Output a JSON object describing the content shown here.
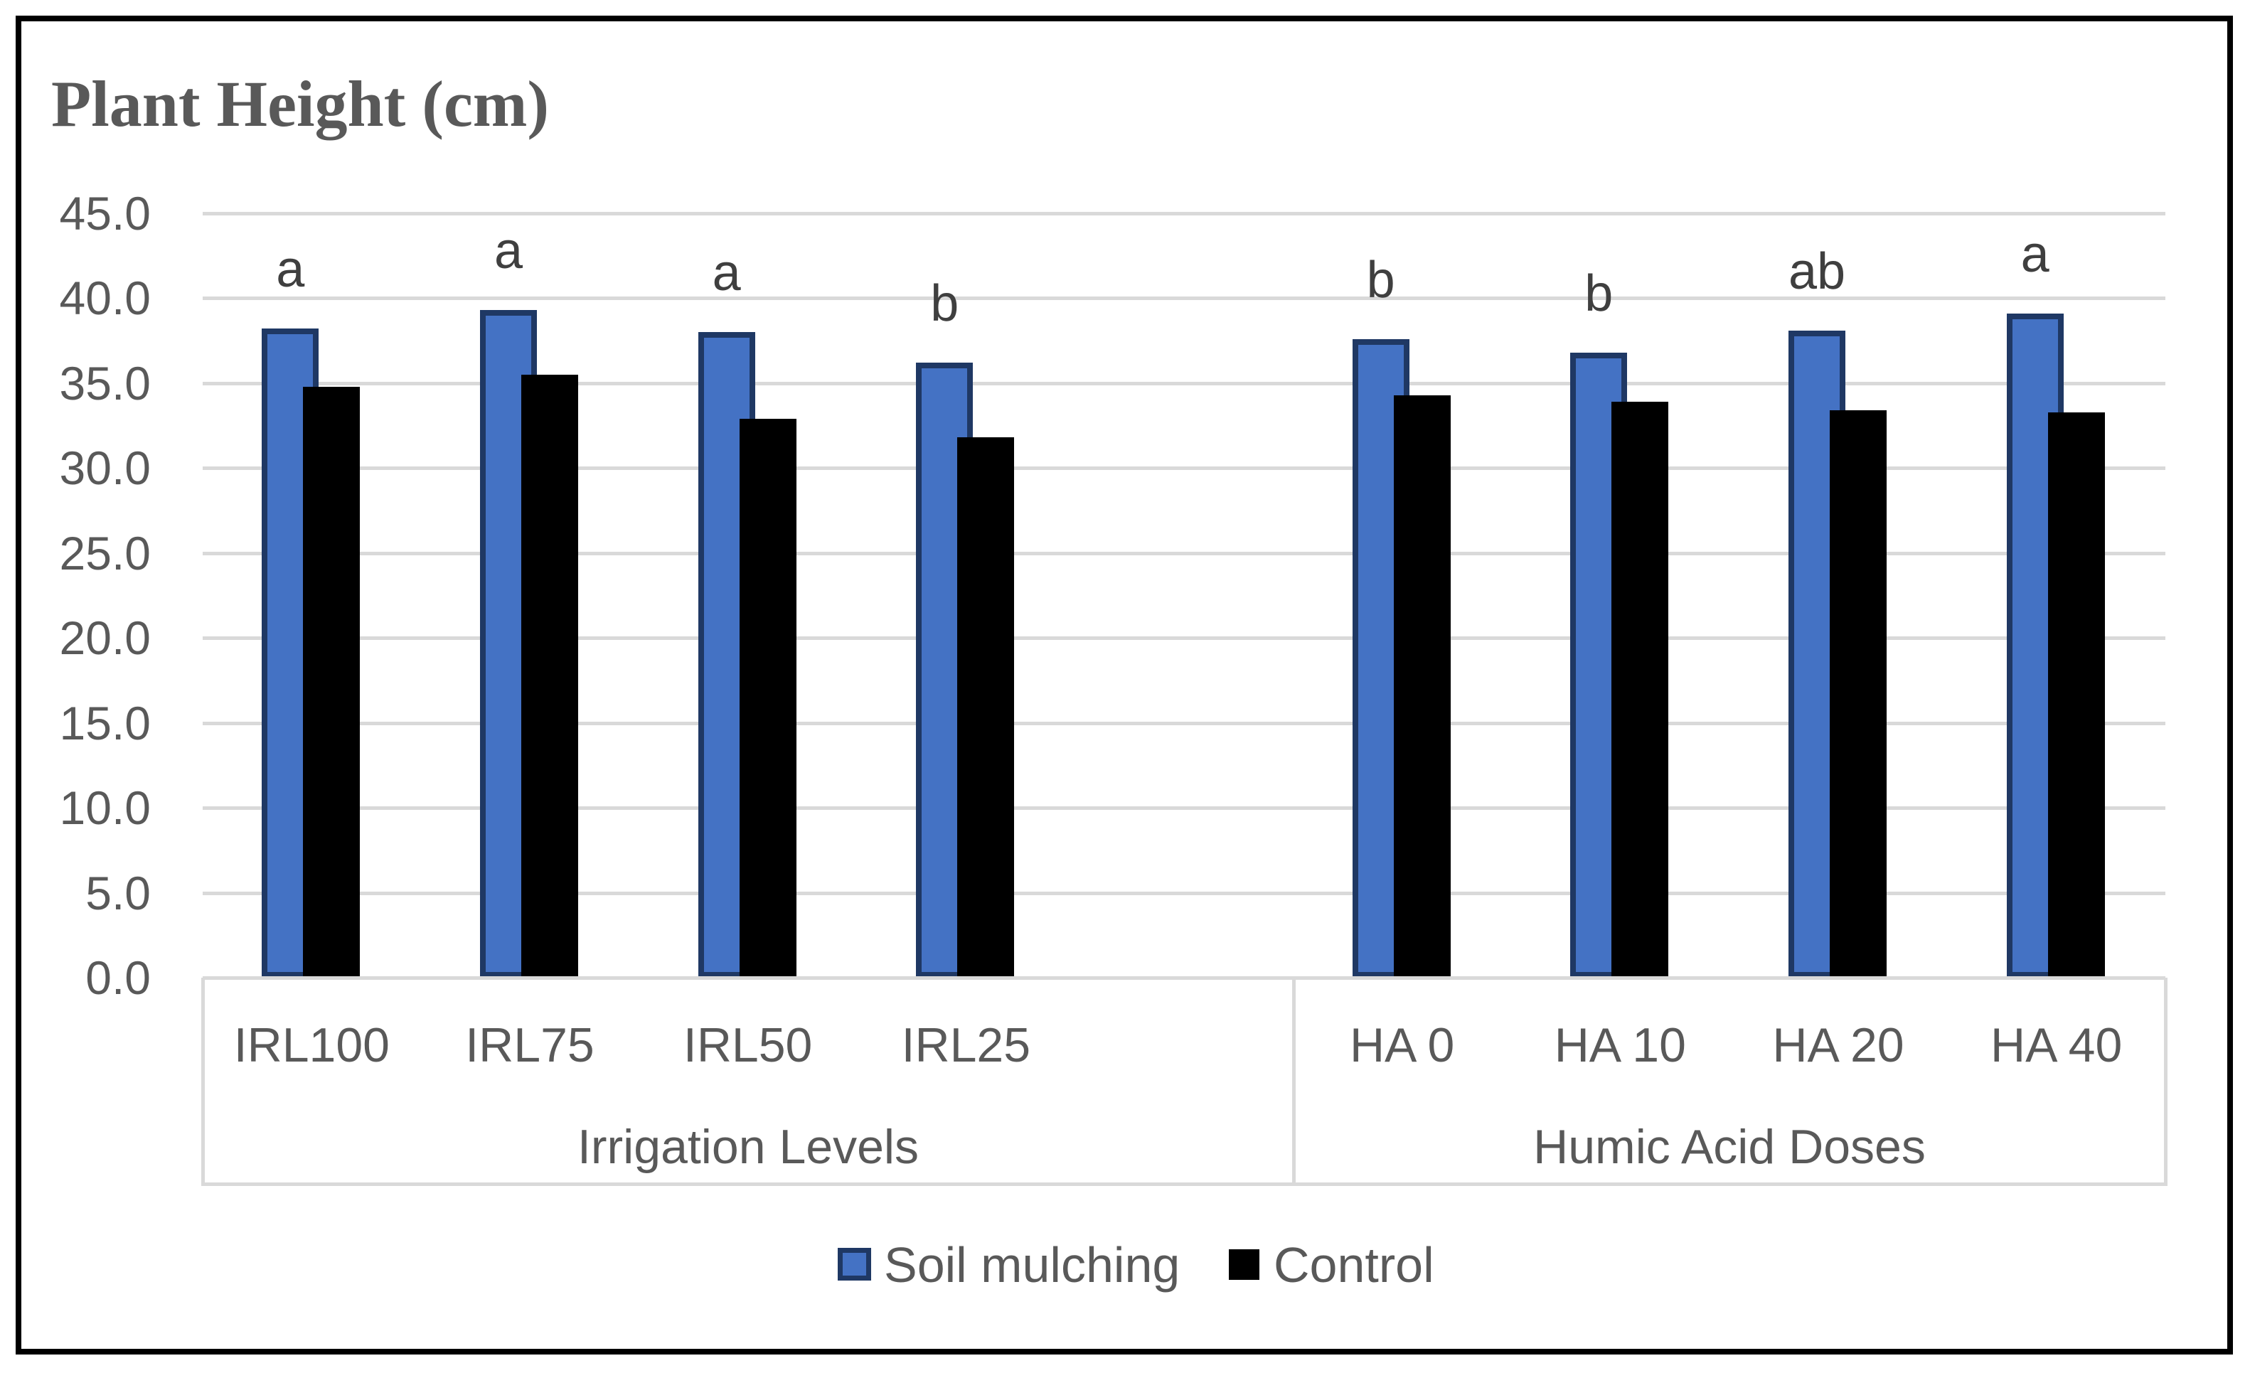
{
  "title": "Plant Height (cm)",
  "colors": {
    "text": "#595959",
    "letter_text": "#3f3f3f",
    "gridline": "#d9d9d9",
    "series_blue_fill": "#4472c4",
    "series_blue_border": "#1f3864",
    "series_black": "#000000",
    "frame_border": "#000000",
    "background": "#ffffff"
  },
  "legend": {
    "position": "bottom",
    "items": [
      {
        "label": "Soil mulching",
        "swatch": "blue-bordered-square"
      },
      {
        "label": "Control",
        "swatch": "black-square"
      }
    ]
  },
  "chart_data": {
    "type": "bar",
    "title": "Plant Height (cm)",
    "ylabel": "",
    "xlabel": "",
    "grid": true,
    "legend_position": "bottom",
    "y_axis": {
      "min": 0,
      "max": 45,
      "step": 5,
      "tick_labels": [
        "45.0",
        "40.0",
        "35.0",
        "30.0",
        "25.0",
        "20.0",
        "15.0",
        "10.0",
        "5.0",
        "0.0"
      ]
    },
    "groups": [
      {
        "label": "Irrigation Levels",
        "categories": [
          "IRL100",
          "IRL75",
          "IRL50",
          "IRL25"
        ]
      },
      {
        "label": "Humic Acid Doses",
        "categories": [
          "HA 0",
          "HA 10",
          "HA 20",
          "HA 40"
        ]
      }
    ],
    "series": [
      {
        "name": "Soil mulching",
        "values": [
          [
            38.2,
            39.3,
            38.0,
            36.2
          ],
          [
            37.6,
            36.8,
            38.1,
            39.1
          ]
        ]
      },
      {
        "name": "Control",
        "values": [
          [
            34.8,
            35.5,
            32.9,
            31.8
          ],
          [
            34.3,
            33.9,
            33.4,
            33.3
          ]
        ]
      }
    ],
    "sig_letters": [
      [
        "a",
        "a",
        "a",
        "b"
      ],
      [
        "b",
        "b",
        "ab",
        "a"
      ]
    ]
  }
}
